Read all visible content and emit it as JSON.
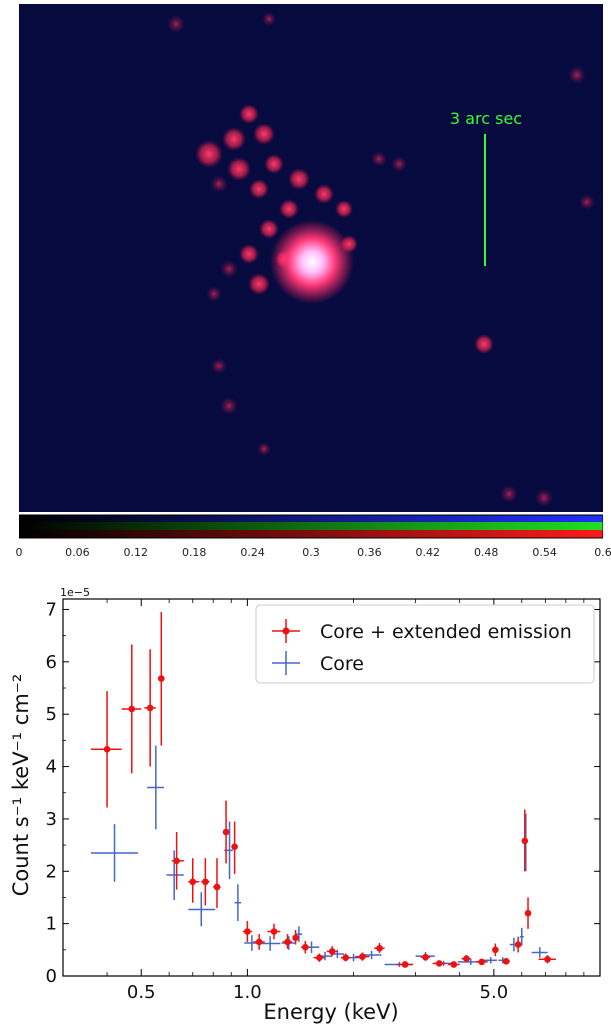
{
  "image_panel": {
    "scale_bar_label": "3 arc sec",
    "scale_bar_color": "#33ff33",
    "background_color": "#070a3e"
  },
  "colorbar": {
    "ticks": [
      "0",
      "0.06",
      "0.12",
      "0.18",
      "0.24",
      "0.3",
      "0.36",
      "0.42",
      "0.48",
      "0.54",
      "0.6"
    ],
    "range": [
      0,
      0.6
    ],
    "channels": [
      "#3030ff",
      "#20e020",
      "#ff2020"
    ]
  },
  "chart_data": {
    "type": "scatter",
    "xlabel": "Energy (keV)",
    "ylabel": "Count s⁻¹ keV⁻¹ cm⁻²",
    "y_offset_label": "1e−5",
    "x_scale": "log",
    "xlim": [
      0.3,
      10.0
    ],
    "ylim": [
      0,
      7.2
    ],
    "x_ticks": [
      "0.5",
      "1.0",
      "5.0"
    ],
    "y_ticks": [
      "0",
      "1",
      "2",
      "3",
      "4",
      "5",
      "6",
      "7"
    ],
    "legend_position": "top-right",
    "series": [
      {
        "name": "Core + extended emission",
        "color": "#ee1111",
        "marker": "dot",
        "points": [
          {
            "x": 0.4,
            "xlo": 0.36,
            "xhi": 0.44,
            "y": 4.33,
            "ylo": 3.22,
            "yhi": 5.44
          },
          {
            "x": 0.47,
            "xlo": 0.44,
            "xhi": 0.5,
            "y": 5.1,
            "ylo": 3.87,
            "yhi": 6.33
          },
          {
            "x": 0.53,
            "xlo": 0.51,
            "xhi": 0.55,
            "y": 5.12,
            "ylo": 4.0,
            "yhi": 6.24
          },
          {
            "x": 0.57,
            "xlo": 0.56,
            "xhi": 0.58,
            "y": 5.68,
            "ylo": 4.4,
            "yhi": 6.95
          },
          {
            "x": 0.63,
            "xlo": 0.61,
            "xhi": 0.66,
            "y": 2.2,
            "ylo": 1.65,
            "yhi": 2.75
          },
          {
            "x": 0.7,
            "xlo": 0.68,
            "xhi": 0.73,
            "y": 1.8,
            "ylo": 1.4,
            "yhi": 2.25
          },
          {
            "x": 0.76,
            "xlo": 0.74,
            "xhi": 0.78,
            "y": 1.8,
            "ylo": 1.35,
            "yhi": 2.25
          },
          {
            "x": 0.82,
            "xlo": 0.8,
            "xhi": 0.84,
            "y": 1.7,
            "ylo": 1.3,
            "yhi": 2.25
          },
          {
            "x": 0.87,
            "xlo": 0.86,
            "xhi": 0.88,
            "y": 2.75,
            "ylo": 2.15,
            "yhi": 3.35
          },
          {
            "x": 0.92,
            "xlo": 0.91,
            "xhi": 0.93,
            "y": 2.47,
            "ylo": 1.95,
            "yhi": 2.95
          },
          {
            "x": 1.0,
            "xlo": 0.97,
            "xhi": 1.03,
            "y": 0.85,
            "ylo": 0.65,
            "yhi": 1.05
          },
          {
            "x": 1.08,
            "xlo": 1.04,
            "xhi": 1.12,
            "y": 0.65,
            "ylo": 0.5,
            "yhi": 0.8
          },
          {
            "x": 1.19,
            "xlo": 1.14,
            "xhi": 1.24,
            "y": 0.85,
            "ylo": 0.7,
            "yhi": 1.0
          },
          {
            "x": 1.3,
            "xlo": 1.26,
            "xhi": 1.34,
            "y": 0.65,
            "ylo": 0.52,
            "yhi": 0.8
          },
          {
            "x": 1.37,
            "xlo": 1.35,
            "xhi": 1.39,
            "y": 0.73,
            "ylo": 0.6,
            "yhi": 0.88
          },
          {
            "x": 1.46,
            "xlo": 1.42,
            "xhi": 1.5,
            "y": 0.55,
            "ylo": 0.43,
            "yhi": 0.67
          },
          {
            "x": 1.6,
            "xlo": 1.54,
            "xhi": 1.66,
            "y": 0.35,
            "ylo": 0.27,
            "yhi": 0.43
          },
          {
            "x": 1.74,
            "xlo": 1.68,
            "xhi": 1.8,
            "y": 0.47,
            "ylo": 0.38,
            "yhi": 0.57
          },
          {
            "x": 1.9,
            "xlo": 1.84,
            "xhi": 1.96,
            "y": 0.35,
            "ylo": 0.28,
            "yhi": 0.43
          },
          {
            "x": 2.12,
            "xlo": 2.02,
            "xhi": 2.22,
            "y": 0.37,
            "ylo": 0.29,
            "yhi": 0.45
          },
          {
            "x": 2.37,
            "xlo": 2.29,
            "xhi": 2.45,
            "y": 0.53,
            "ylo": 0.44,
            "yhi": 0.63
          },
          {
            "x": 2.8,
            "xlo": 2.65,
            "xhi": 2.95,
            "y": 0.22,
            "ylo": 0.17,
            "yhi": 0.27
          },
          {
            "x": 3.2,
            "xlo": 3.1,
            "xhi": 3.3,
            "y": 0.36,
            "ylo": 0.29,
            "yhi": 0.43
          },
          {
            "x": 3.5,
            "xlo": 3.35,
            "xhi": 3.65,
            "y": 0.24,
            "ylo": 0.19,
            "yhi": 0.29
          },
          {
            "x": 3.85,
            "xlo": 3.7,
            "xhi": 4.0,
            "y": 0.22,
            "ylo": 0.17,
            "yhi": 0.27
          },
          {
            "x": 4.18,
            "xlo": 4.05,
            "xhi": 4.3,
            "y": 0.33,
            "ylo": 0.26,
            "yhi": 0.4
          },
          {
            "x": 4.62,
            "xlo": 4.45,
            "xhi": 4.8,
            "y": 0.27,
            "ylo": 0.21,
            "yhi": 0.33
          },
          {
            "x": 5.05,
            "xlo": 4.95,
            "xhi": 5.15,
            "y": 0.5,
            "ylo": 0.38,
            "yhi": 0.62
          },
          {
            "x": 5.42,
            "xlo": 5.3,
            "xhi": 5.55,
            "y": 0.28,
            "ylo": 0.22,
            "yhi": 0.34
          },
          {
            "x": 5.86,
            "xlo": 5.75,
            "xhi": 5.97,
            "y": 0.6,
            "ylo": 0.45,
            "yhi": 0.75
          },
          {
            "x": 6.12,
            "xlo": 6.1,
            "xhi": 6.14,
            "y": 2.58,
            "ylo": 2.0,
            "yhi": 3.18
          },
          {
            "x": 6.25,
            "xlo": 6.2,
            "xhi": 6.3,
            "y": 1.2,
            "ylo": 0.9,
            "yhi": 1.5
          },
          {
            "x": 7.1,
            "xlo": 6.7,
            "xhi": 7.5,
            "y": 0.32,
            "ylo": 0.24,
            "yhi": 0.4
          }
        ]
      },
      {
        "name": "Core",
        "color": "#4466cc",
        "marker": "none",
        "points": [
          {
            "x": 0.42,
            "xlo": 0.36,
            "xhi": 0.49,
            "y": 2.35,
            "ylo": 1.8,
            "yhi": 2.9
          },
          {
            "x": 0.55,
            "xlo": 0.52,
            "xhi": 0.58,
            "y": 3.6,
            "ylo": 2.8,
            "yhi": 4.4
          },
          {
            "x": 0.62,
            "xlo": 0.59,
            "xhi": 0.66,
            "y": 1.93,
            "ylo": 1.45,
            "yhi": 2.4
          },
          {
            "x": 0.74,
            "xlo": 0.68,
            "xhi": 0.81,
            "y": 1.27,
            "ylo": 0.95,
            "yhi": 1.6
          },
          {
            "x": 0.89,
            "xlo": 0.86,
            "xhi": 0.91,
            "y": 2.4,
            "ylo": 1.85,
            "yhi": 2.95
          },
          {
            "x": 0.94,
            "xlo": 0.92,
            "xhi": 0.96,
            "y": 1.4,
            "ylo": 1.05,
            "yhi": 1.75
          },
          {
            "x": 1.03,
            "xlo": 0.98,
            "xhi": 1.1,
            "y": 0.63,
            "ylo": 0.48,
            "yhi": 0.78
          },
          {
            "x": 1.16,
            "xlo": 1.1,
            "xhi": 1.24,
            "y": 0.62,
            "ylo": 0.48,
            "yhi": 0.76
          },
          {
            "x": 1.31,
            "xlo": 1.25,
            "xhi": 1.37,
            "y": 0.63,
            "ylo": 0.5,
            "yhi": 0.76
          },
          {
            "x": 1.4,
            "xlo": 1.37,
            "xhi": 1.43,
            "y": 0.8,
            "ylo": 0.65,
            "yhi": 0.95
          },
          {
            "x": 1.52,
            "xlo": 1.45,
            "xhi": 1.6,
            "y": 0.55,
            "ylo": 0.44,
            "yhi": 0.66
          },
          {
            "x": 1.66,
            "xlo": 1.58,
            "xhi": 1.74,
            "y": 0.38,
            "ylo": 0.3,
            "yhi": 0.46
          },
          {
            "x": 1.8,
            "xlo": 1.72,
            "xhi": 1.88,
            "y": 0.42,
            "ylo": 0.34,
            "yhi": 0.5
          },
          {
            "x": 2.0,
            "xlo": 1.9,
            "xhi": 2.1,
            "y": 0.35,
            "ylo": 0.28,
            "yhi": 0.42
          },
          {
            "x": 2.25,
            "xlo": 2.1,
            "xhi": 2.4,
            "y": 0.4,
            "ylo": 0.32,
            "yhi": 0.48
          },
          {
            "x": 2.7,
            "xlo": 2.45,
            "xhi": 2.95,
            "y": 0.22,
            "ylo": 0.17,
            "yhi": 0.27
          },
          {
            "x": 3.2,
            "xlo": 3.0,
            "xhi": 3.4,
            "y": 0.38,
            "ylo": 0.3,
            "yhi": 0.46
          },
          {
            "x": 3.6,
            "xlo": 3.4,
            "xhi": 3.85,
            "y": 0.24,
            "ylo": 0.19,
            "yhi": 0.29
          },
          {
            "x": 4.3,
            "xlo": 3.95,
            "xhi": 4.7,
            "y": 0.27,
            "ylo": 0.21,
            "yhi": 0.33
          },
          {
            "x": 4.9,
            "xlo": 4.7,
            "xhi": 5.1,
            "y": 0.3,
            "ylo": 0.24,
            "yhi": 0.36
          },
          {
            "x": 5.3,
            "xlo": 5.15,
            "xhi": 5.5,
            "y": 0.3,
            "ylo": 0.24,
            "yhi": 0.36
          },
          {
            "x": 5.7,
            "xlo": 5.55,
            "xhi": 5.9,
            "y": 0.6,
            "ylo": 0.47,
            "yhi": 0.73
          },
          {
            "x": 6.0,
            "xlo": 5.92,
            "xhi": 6.08,
            "y": 0.75,
            "ylo": 0.58,
            "yhi": 0.92
          },
          {
            "x": 6.16,
            "xlo": 6.13,
            "xhi": 6.19,
            "y": 2.55,
            "ylo": 2.0,
            "yhi": 3.1
          },
          {
            "x": 6.75,
            "xlo": 6.4,
            "xhi": 7.1,
            "y": 0.45,
            "ylo": 0.35,
            "yhi": 0.55
          }
        ]
      }
    ]
  }
}
